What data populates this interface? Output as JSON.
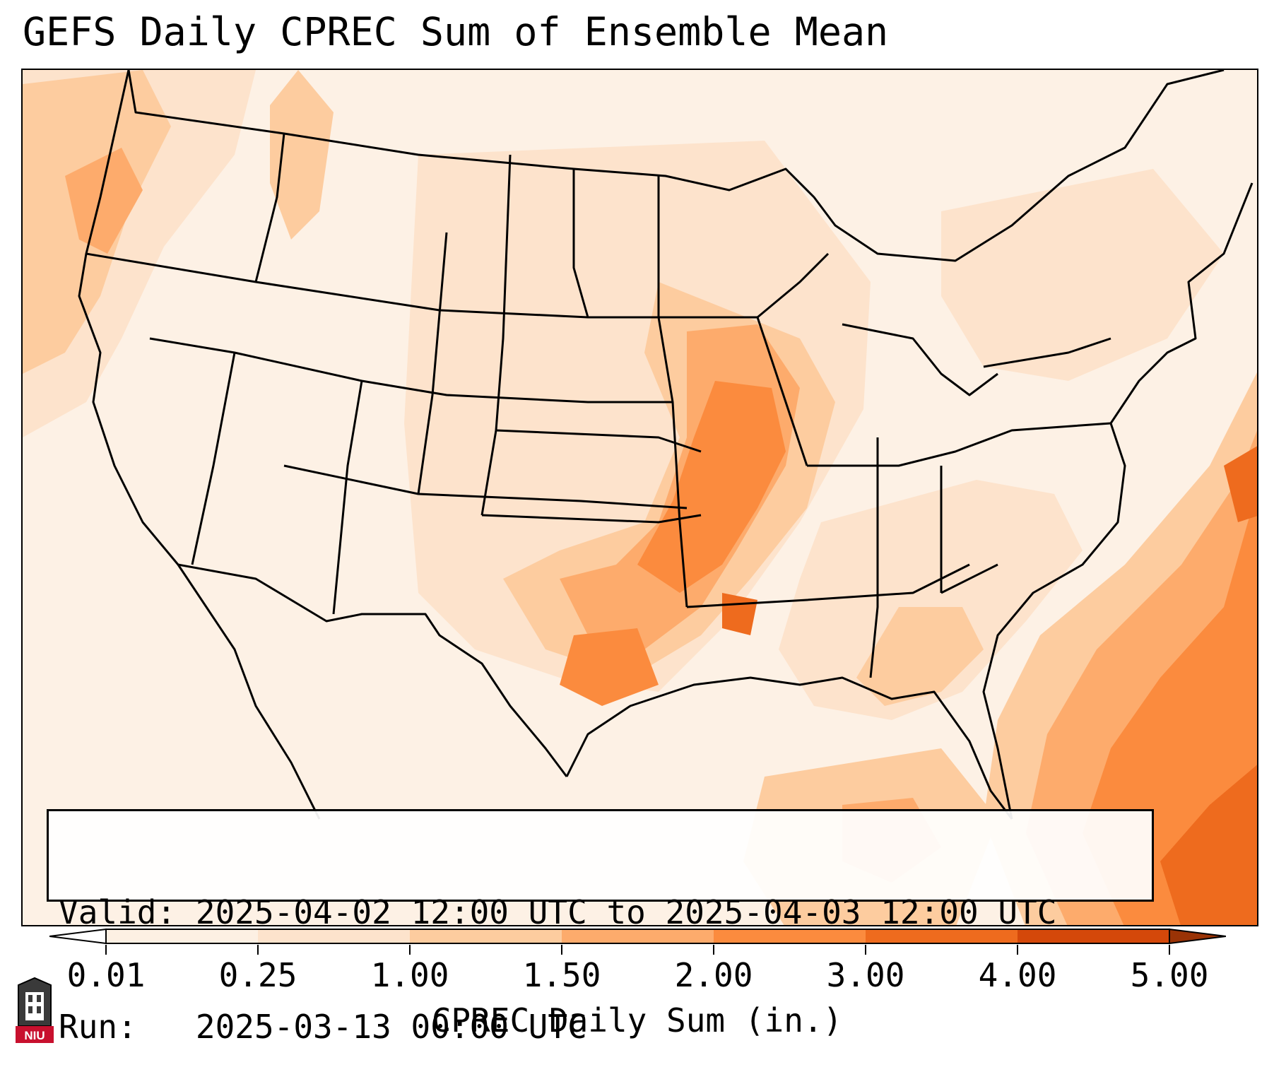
{
  "title": "GEFS Daily CPREC Sum of Ensemble Mean",
  "info": {
    "valid_label": "Valid:",
    "valid_value": "2025-04-02 12:00 UTC to 2025-04-03 12:00 UTC",
    "run_label": "Run:",
    "run_value": "2025-03-13 00:00 UTC"
  },
  "colorbar": {
    "label": "CPREC Daily Sum (in.)",
    "ticks": [
      "0.01",
      "0.25",
      "1.00",
      "1.50",
      "2.00",
      "3.00",
      "4.00",
      "5.00"
    ],
    "colors": [
      "#fdf0e3",
      "#fde3cc",
      "#fdcc9f",
      "#fdab6c",
      "#fb8b3e",
      "#ee6b1e",
      "#d4480a"
    ],
    "extend": "both"
  },
  "logo": {
    "text": "NIU",
    "color": "#c8102e"
  },
  "map": {
    "region": "Contiguous United States",
    "colors": {
      "background": "#fdf1e5",
      "light": "#fde3cc",
      "medium": "#fdcc9f",
      "heavy": "#fdab6c",
      "heavier": "#fb8b3e",
      "heaviest": "#ee6b1e",
      "boundary": "#000000"
    }
  }
}
